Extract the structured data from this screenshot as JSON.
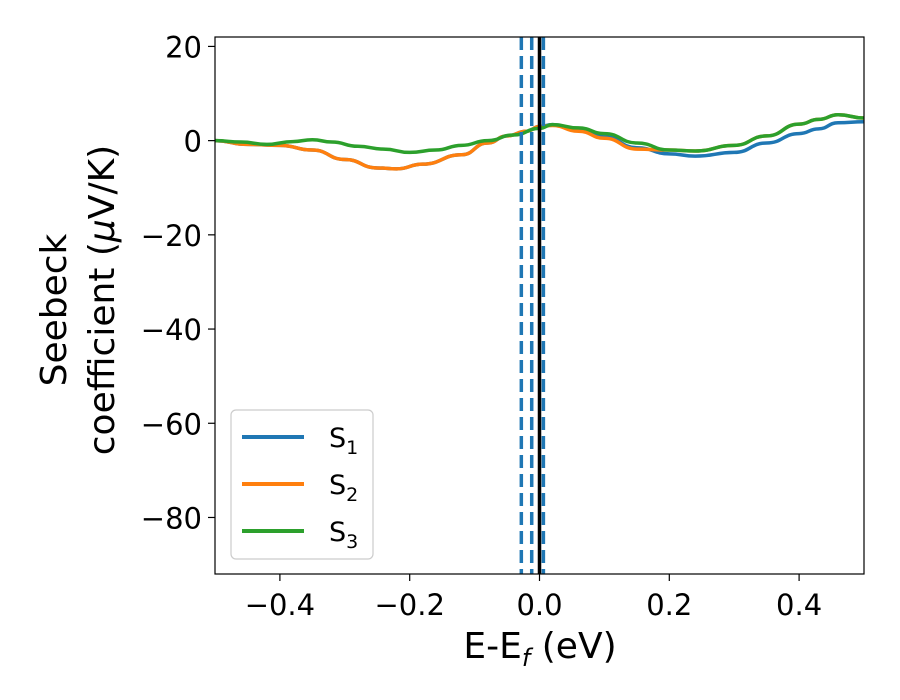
{
  "chart_data": {
    "type": "line",
    "title": "",
    "xlabel": {
      "main": "E-E",
      "sub": "f",
      "suffix": " (eV)"
    },
    "ylabel": {
      "line1": "Seebeck",
      "line2": "coefficient  (",
      "mu": "μ",
      "line2_end": "V/K)"
    },
    "xlim": [
      -0.5,
      0.5
    ],
    "ylim": [
      -92,
      22
    ],
    "xticks": [
      -0.4,
      -0.2,
      0.0,
      0.2,
      0.4
    ],
    "xtick_labels": [
      "−0.4",
      "−0.2",
      "0.0",
      "0.2",
      "0.4"
    ],
    "yticks": [
      20,
      0,
      -20,
      -40,
      -60,
      -80
    ],
    "ytick_labels": [
      "20",
      "0",
      "−20",
      "−40",
      "−60",
      "−80"
    ],
    "grid": false,
    "legend_position": "lower-left",
    "vertical_lines": [
      {
        "x": -0.028,
        "style": "dashed",
        "color": "#1f77b4"
      },
      {
        "x": -0.012,
        "style": "dashed",
        "color": "#1f77b4"
      },
      {
        "x": 0.006,
        "style": "dashed",
        "color": "#1f77b4"
      },
      {
        "x": 0.0,
        "style": "solid",
        "color": "#000000"
      }
    ],
    "series": [
      {
        "name": "S",
        "sub": "1",
        "color": "#1f77b4",
        "points": [
          [
            -0.5,
            0.0
          ],
          [
            -0.45,
            -0.8
          ],
          [
            -0.4,
            -1.0
          ],
          [
            -0.35,
            -2.0
          ],
          [
            -0.3,
            -4.0
          ],
          [
            -0.25,
            -5.8
          ],
          [
            -0.22,
            -6.0
          ],
          [
            -0.18,
            -5.0
          ],
          [
            -0.12,
            -3.0
          ],
          [
            -0.08,
            -0.5
          ],
          [
            -0.05,
            1.0
          ],
          [
            -0.02,
            2.0
          ],
          [
            0.0,
            3.0
          ],
          [
            0.02,
            3.4
          ],
          [
            0.06,
            2.2
          ],
          [
            0.1,
            0.8
          ],
          [
            0.15,
            -1.5
          ],
          [
            0.2,
            -2.8
          ],
          [
            0.24,
            -3.3
          ],
          [
            0.3,
            -2.5
          ],
          [
            0.35,
            -0.5
          ],
          [
            0.4,
            1.5
          ],
          [
            0.43,
            2.5
          ],
          [
            0.46,
            3.8
          ],
          [
            0.5,
            4.0
          ]
        ]
      },
      {
        "name": "S",
        "sub": "2",
        "color": "#ff7f0e",
        "points": [
          [
            -0.5,
            0.0
          ],
          [
            -0.45,
            -0.8
          ],
          [
            -0.4,
            -1.0
          ],
          [
            -0.35,
            -2.0
          ],
          [
            -0.3,
            -4.0
          ],
          [
            -0.25,
            -5.8
          ],
          [
            -0.22,
            -6.0
          ],
          [
            -0.18,
            -5.0
          ],
          [
            -0.12,
            -3.0
          ],
          [
            -0.08,
            -0.5
          ],
          [
            -0.05,
            1.0
          ],
          [
            -0.02,
            2.0
          ],
          [
            0.0,
            3.0
          ],
          [
            0.02,
            3.2
          ],
          [
            0.06,
            2.0
          ],
          [
            0.1,
            0.5
          ],
          [
            0.15,
            -1.8
          ],
          [
            0.2,
            -2.0
          ],
          [
            0.24,
            -2.2
          ],
          [
            0.3,
            -1.0
          ],
          [
            0.35,
            1.0
          ],
          [
            0.4,
            3.5
          ],
          [
            0.43,
            4.5
          ],
          [
            0.46,
            5.5
          ],
          [
            0.5,
            4.8
          ]
        ]
      },
      {
        "name": "S",
        "sub": "3",
        "color": "#2ca02c",
        "points": [
          [
            -0.5,
            0.0
          ],
          [
            -0.46,
            -0.3
          ],
          [
            -0.42,
            -0.8
          ],
          [
            -0.38,
            -0.2
          ],
          [
            -0.35,
            0.2
          ],
          [
            -0.32,
            -0.3
          ],
          [
            -0.28,
            -1.2
          ],
          [
            -0.24,
            -1.8
          ],
          [
            -0.2,
            -2.5
          ],
          [
            -0.16,
            -2.0
          ],
          [
            -0.12,
            -1.0
          ],
          [
            -0.08,
            0.0
          ],
          [
            -0.04,
            1.2
          ],
          [
            0.0,
            2.6
          ],
          [
            0.02,
            3.4
          ],
          [
            0.06,
            2.7
          ],
          [
            0.1,
            1.5
          ],
          [
            0.15,
            -0.5
          ],
          [
            0.2,
            -2.0
          ],
          [
            0.24,
            -2.2
          ],
          [
            0.3,
            -1.0
          ],
          [
            0.35,
            1.0
          ],
          [
            0.4,
            3.5
          ],
          [
            0.43,
            4.5
          ],
          [
            0.46,
            5.5
          ],
          [
            0.5,
            4.8
          ]
        ]
      }
    ]
  }
}
